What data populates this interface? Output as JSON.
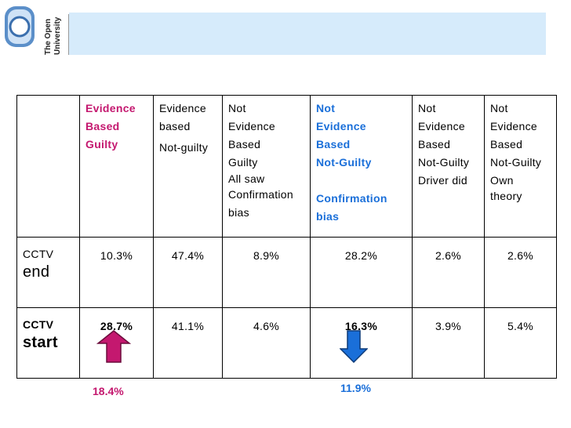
{
  "logo": {
    "text_line1": "The Open",
    "text_line2": "University"
  },
  "table": {
    "header": [
      {
        "lines": []
      },
      {
        "lines": [
          "Evidence",
          "Based",
          "Guilty"
        ],
        "style": "magenta"
      },
      {
        "lines": [
          "Evidence",
          "based",
          "Not-guilty"
        ],
        "style": "plain"
      },
      {
        "lines": [
          "Not",
          "Evidence",
          "Based",
          "Guilty",
          "All saw",
          "Confirmation",
          "bias"
        ],
        "style": "plain"
      },
      {
        "lines": [
          "Not",
          "Evidence",
          "Based",
          "Not-Guilty",
          "",
          "Confirmation",
          "bias"
        ],
        "style": "blue"
      },
      {
        "lines": [
          "Not",
          "Evidence",
          "Based",
          "Not-Guilty",
          "Driver did"
        ],
        "style": "plain"
      },
      {
        "lines": [
          "Not",
          "Evidence",
          "Based",
          "Not-Guilty",
          "Own",
          "theory"
        ],
        "style": "plain"
      }
    ],
    "rows": [
      {
        "label_top": "CCTV",
        "label_bottom": "end",
        "values": [
          "10.3%",
          "47.4%",
          "8.9%",
          "28.2%",
          "2.6%",
          "2.6%"
        ]
      },
      {
        "label_top": "CCTV",
        "label_bottom": "start",
        "values": [
          "28.7%",
          "41.1%",
          "4.6%",
          "16.3%",
          "3.9%",
          "5.4%"
        ]
      }
    ]
  },
  "annotations": {
    "up_change": "18.4%",
    "down_change": "11.9%",
    "up_color": "#c4186f",
    "down_color": "#1a6fd9",
    "up_arrow_icon": "arrow-up-icon",
    "down_arrow_icon": "arrow-down-icon"
  }
}
